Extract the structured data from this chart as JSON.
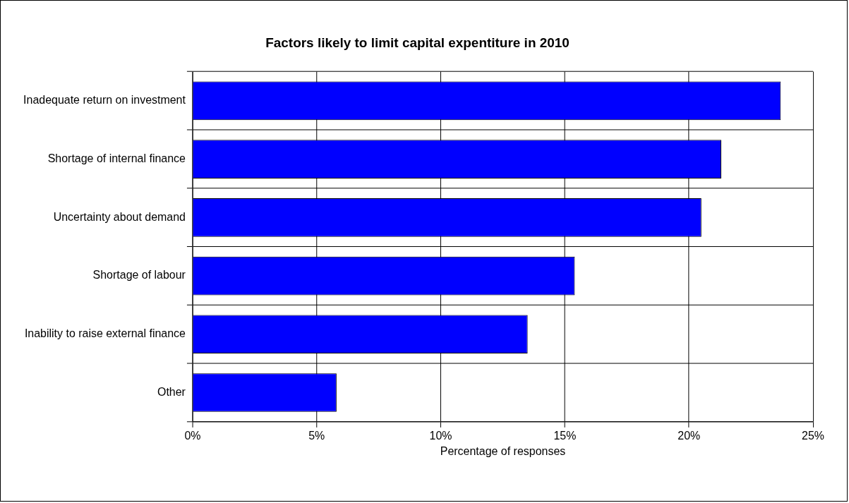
{
  "chart_data": {
    "type": "bar",
    "orientation": "horizontal",
    "title": "Factors likely to limit capital expentiture in 2010",
    "xlabel": "Percentage of responses",
    "categories": [
      "Inadequate return on investment",
      "Shortage of internal finance",
      "Uncertainty about demand",
      "Shortage of labour",
      "Inability to raise external finance",
      "Other"
    ],
    "values": [
      23.7,
      21.3,
      20.5,
      15.4,
      13.5,
      5.8
    ],
    "color": "#0000ff",
    "xlim": [
      0,
      25
    ],
    "xticks": [
      {
        "value": 0,
        "label": "0%"
      },
      {
        "value": 5,
        "label": "5%"
      },
      {
        "value": 10,
        "label": "10%"
      },
      {
        "value": 15,
        "label": "15%"
      },
      {
        "value": 20,
        "label": "20%"
      },
      {
        "value": 25,
        "label": "25%"
      }
    ],
    "grid": true
  }
}
